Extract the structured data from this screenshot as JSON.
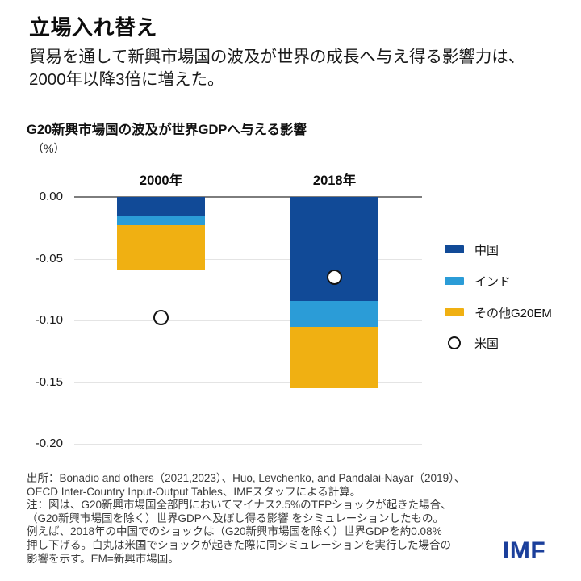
{
  "page": {
    "title": "立場入れ替え",
    "subtitle_lines": [
      "貿易を通して新興市場国の波及が世界の成長へ与え得る影響力は、",
      "2000年以降3倍に増えた。"
    ]
  },
  "chart": {
    "title": "G20新興市場国の波及が世界GDPへ与える影響",
    "unit_label": "（%）"
  },
  "chart_data": {
    "type": "bar",
    "stacked": true,
    "orientation": "vertical",
    "categories": [
      "2000年",
      "2018年"
    ],
    "series": [
      {
        "name": "中国",
        "color": "#114A97",
        "values": [
          -0.016,
          -0.084
        ]
      },
      {
        "name": "インド",
        "color": "#2B9CD7",
        "values": [
          -0.007,
          -0.021
        ]
      },
      {
        "name": "その他G20EM",
        "color": "#F0B012",
        "values": [
          -0.036,
          -0.05
        ]
      }
    ],
    "marker_series": {
      "name": "米国",
      "style": "open-circle",
      "values": [
        -0.098,
        -0.065
      ]
    },
    "totals": [
      -0.059,
      -0.155
    ],
    "title": "G20新興市場国の波及が世界GDPへ与える影響",
    "xlabel": "",
    "ylabel": "(%)",
    "ylim": [
      -0.2,
      0.0
    ],
    "yticks": [
      "0.00",
      "-0.05",
      "-0.10",
      "-0.15",
      "-0.20"
    ],
    "grid": true,
    "legend_position": "right"
  },
  "colors": {
    "zero_line": "#7d7d7d",
    "gridline": "#e4e4e4",
    "logo_blue": "#1b3f9b"
  },
  "footer": {
    "lines": [
      "出所：Bonadio and others（2021,2023）、Huo, Levchenko, and Pandalai-Nayar（2019）、",
      "OECD Inter-Country Input-Output Tables、IMFスタッフによる計算。",
      "注：図は、G20新興市場国全部門においてマイナス2.5%のTFPショックが起きた場合、",
      "（G20新興市場国を除く）世界GDPへ及ぼし得る影響 をシミュレーションしたもの。",
      "例えば、2018年の中国でのショックは（G20新興市場国を除く）世界GDPを約0.08%",
      "押し下げる。白丸は米国でショックが起きた際に同シミュレーションを実行した場合の",
      "影響を示す。EM=新興市場国。"
    ]
  },
  "logo": "IMF"
}
